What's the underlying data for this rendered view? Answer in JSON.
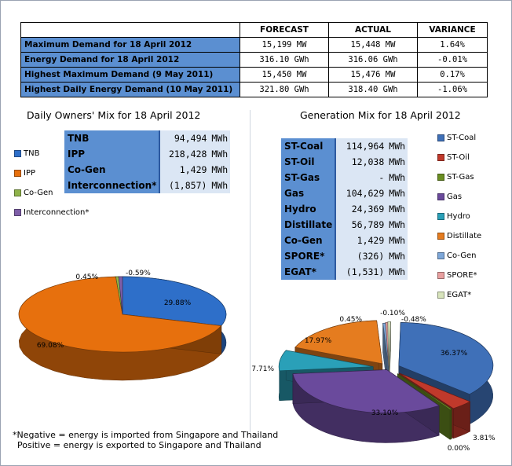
{
  "summary": {
    "headers": [
      "",
      "FORECAST",
      "ACTUAL",
      "VARIANCE"
    ],
    "rows": [
      {
        "label": "Maximum Demand for 18 April 2012",
        "forecast": "15,199 MW",
        "actual": "15,448 MW",
        "variance": "1.64%"
      },
      {
        "label": "Energy Demand for 18 April 2012",
        "forecast": "316.10 GWh",
        "actual": "316.06 GWh",
        "variance": "-0.01%"
      },
      {
        "label": "Highest Maximum Demand (9 May 2011)",
        "forecast": "15,450 MW",
        "actual": "15,476 MW",
        "variance": "0.17%"
      },
      {
        "label": "Highest Daily Energy Demand (10 May 2011)",
        "forecast": "321.80 GWh",
        "actual": "318.40 GWh",
        "variance": "-1.06%"
      }
    ]
  },
  "owners": {
    "title": "Daily Owners' Mix for 18 April 2012",
    "rows": [
      {
        "label": "TNB",
        "value": "94,494",
        "unit": "MWh"
      },
      {
        "label": "IPP",
        "value": "218,428",
        "unit": "MWh"
      },
      {
        "label": "Co-Gen",
        "value": "1,429",
        "unit": "MWh"
      },
      {
        "label": "Interconnection*",
        "value": "(1,857)",
        "unit": "MWh"
      }
    ]
  },
  "generation": {
    "title": "Generation Mix for 18 April 2012",
    "rows": [
      {
        "label": "ST-Coal",
        "value": "114,964",
        "unit": "MWh"
      },
      {
        "label": "ST-Oil",
        "value": "12,038",
        "unit": "MWh"
      },
      {
        "label": "ST-Gas",
        "value": "-",
        "unit": "MWh"
      },
      {
        "label": "Gas",
        "value": "104,629",
        "unit": "MWh"
      },
      {
        "label": "Hydro",
        "value": "24,369",
        "unit": "MWh"
      },
      {
        "label": "Distillate",
        "value": "56,789",
        "unit": "MWh"
      },
      {
        "label": "Co-Gen",
        "value": "1,429",
        "unit": "MWh"
      },
      {
        "label": "SPORE*",
        "value": "(326)",
        "unit": "MWh"
      },
      {
        "label": "EGAT*",
        "value": "(1,531)",
        "unit": "MWh"
      }
    ]
  },
  "chart_data": [
    {
      "type": "pie",
      "title": "Daily Owners' Mix for 18 April 2012",
      "categories": [
        "TNB",
        "IPP",
        "Co-Gen",
        "Interconnection*"
      ],
      "values": [
        29.88,
        69.08,
        0.45,
        -0.59
      ],
      "labels": [
        "29.88%",
        "69.08%",
        "0.45%",
        "-0.59%"
      ],
      "colors": [
        "#2e6fc9",
        "#e7700d",
        "#8fb34a",
        "#7e5ea8"
      ],
      "legend": "left"
    },
    {
      "type": "pie",
      "title": "Generation Mix for 18 April 2012",
      "categories": [
        "ST-Coal",
        "ST-Oil",
        "ST-Gas",
        "Gas",
        "Hydro",
        "Distillate",
        "Co-Gen",
        "SPORE*",
        "EGAT*"
      ],
      "values": [
        36.37,
        3.81,
        0.0,
        33.1,
        7.71,
        17.97,
        0.45,
        -0.1,
        -0.48
      ],
      "labels": [
        "36.37%",
        "3.81%",
        "0.00%",
        "33.10%",
        "7.71%",
        "17.97%",
        "0.45%",
        "-0.10%",
        "-0.48%"
      ],
      "colors": [
        "#3f70b8",
        "#c0392b",
        "#6b8e23",
        "#6a4a9c",
        "#2aa0b8",
        "#e57c1f",
        "#7da7d9",
        "#e8a0a0",
        "#d8e4bc"
      ],
      "legend": "right"
    }
  ],
  "footnote": {
    "line1": "*Negative = energy is imported from Singapore and Thailand",
    "line2": "Positive = energy is exported to Singapore and Thailand"
  }
}
